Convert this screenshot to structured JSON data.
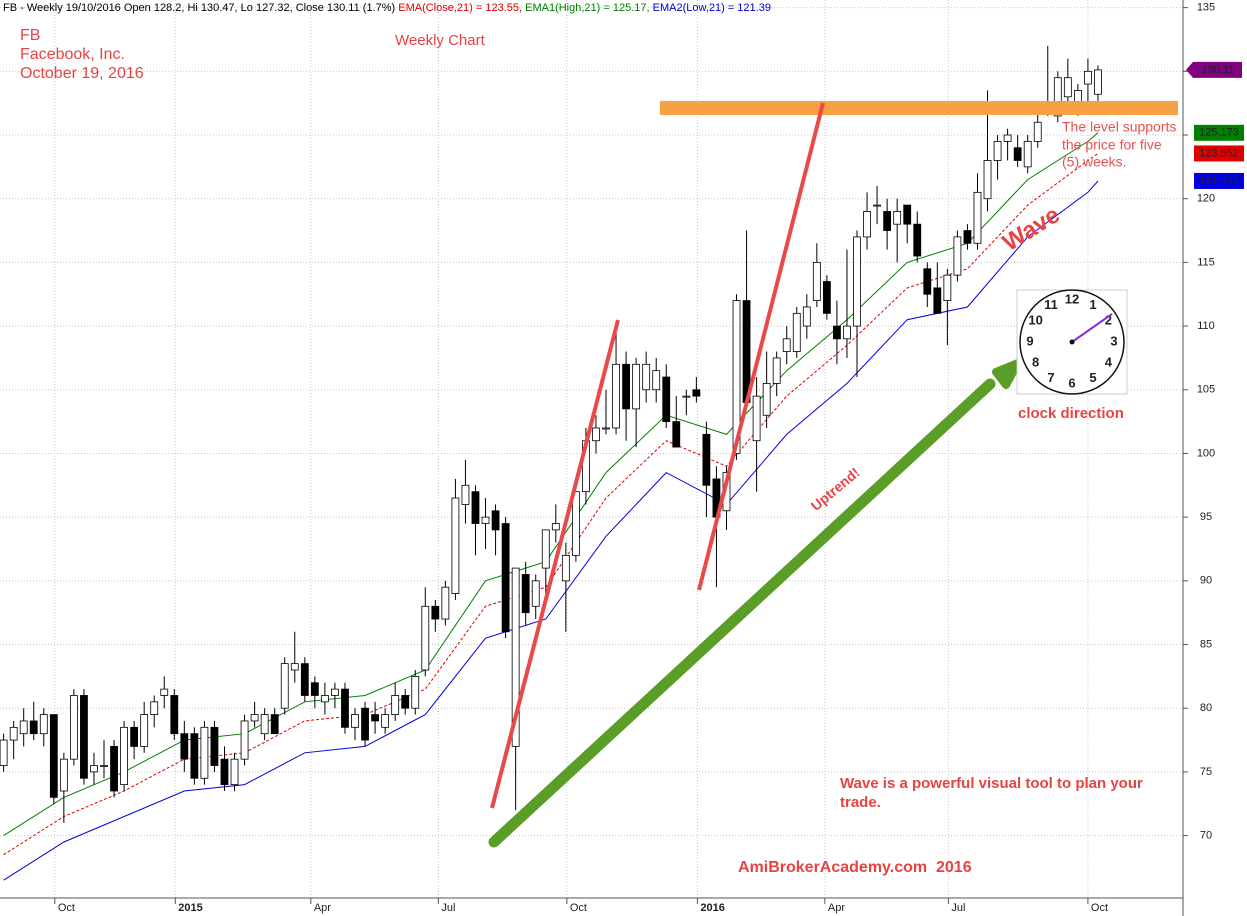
{
  "chart_data": {
    "type": "candlestick",
    "header": [
      {
        "text": "FB - Weekly 19/10/2016 Open 128.2, Hi 130.47, Lo 127.32, Close 130.11 (1.7%) ",
        "color": "#000000"
      },
      {
        "text": "EMA(Close,21) = 123.55, ",
        "color": "#e00000"
      },
      {
        "text": "EMA1(High,21) = 125.17, ",
        "color": "#008000"
      },
      {
        "text": "EMA2(Low,21) = 121.39",
        "color": "#0000c8"
      }
    ],
    "symbol": "FB",
    "company": "Facebook, Inc.",
    "date": "October 19, 2016",
    "title": "Weekly Chart",
    "level_note": [
      "The level supports",
      "the price for five",
      "(5) weeks."
    ],
    "wave_label": "Wave",
    "uptrend_label": "Uptrend!",
    "clock_label": "clock direction",
    "clock_numbers": [
      "12",
      "1",
      "2",
      "3",
      "4",
      "5",
      "6",
      "7",
      "8",
      "9",
      "10",
      "11"
    ],
    "note": [
      "Wave is a powerful visual tool to plan your",
      "trade."
    ],
    "credit": "AmiBrokerAcademy.com  2016",
    "ylim": [
      65.1,
      135.6
    ],
    "yticks": [
      70,
      75,
      80,
      85,
      90,
      95,
      100,
      105,
      110,
      115,
      120,
      125,
      130,
      135
    ],
    "xlim": [
      -0.36,
      117.47
    ],
    "xticks": [
      {
        "value": 5.1,
        "label": "Oct"
      },
      {
        "value": 17.1,
        "label": "2015"
      },
      {
        "value": 30.6,
        "label": "Apr"
      },
      {
        "value": 43.3,
        "label": "Jul"
      },
      {
        "value": 56.1,
        "label": "Oct"
      },
      {
        "value": 69.1,
        "label": "2016"
      },
      {
        "value": 81.8,
        "label": "Apr"
      },
      {
        "value": 94.1,
        "label": "Jul"
      },
      {
        "value": 108,
        "label": "Oct"
      }
    ],
    "grid": true,
    "close_badge_color": "#800080",
    "open": [
      75.5,
      77.5,
      78,
      79,
      78,
      79.5,
      73.5,
      76,
      81,
      75,
      75.5,
      77,
      74,
      78.5,
      77,
      79.5,
      81,
      81,
      78,
      78,
      74.5,
      78.5,
      76,
      74,
      76,
      79,
      78,
      79.5,
      80,
      83,
      83.5,
      82,
      80.5,
      81,
      81.5,
      78.5,
      80,
      79.5,
      78.5,
      79.5,
      81,
      80,
      83,
      88,
      87,
      89,
      96,
      97,
      94.5,
      95.5,
      94.5,
      77,
      90.5,
      88,
      91,
      94,
      90,
      92,
      97,
      101,
      102,
      102,
      107,
      103.5,
      105,
      105,
      106,
      102.5,
      104.5,
      105,
      101.5,
      98,
      95.5,
      100,
      112,
      101,
      103,
      105.5,
      108,
      108,
      110,
      112,
      113.5,
      110,
      109,
      110,
      117,
      119.5,
      119,
      118,
      119.5,
      118,
      114.5,
      113,
      112,
      114,
      117.5,
      116.5,
      120,
      123,
      124.5,
      124,
      122.5,
      124.5,
      127.5,
      126.5,
      128,
      127.5,
      129,
      128.2
    ],
    "high": [
      78,
      79,
      80,
      80.5,
      80,
      79.5,
      76.5,
      81.5,
      81.5,
      76.5,
      77.5,
      77.5,
      79,
      79,
      80.5,
      81,
      82.5,
      81.5,
      79,
      78.5,
      79,
      79,
      77,
      76.5,
      79.5,
      80.5,
      80,
      80,
      84,
      86,
      84,
      82.5,
      82,
      82,
      82,
      80,
      80.5,
      80.5,
      80,
      82,
      81.5,
      83,
      89.5,
      88.5,
      90,
      98,
      99.5,
      97.5,
      96.5,
      96,
      95,
      91,
      91.5,
      90.5,
      94,
      96,
      93,
      97,
      102,
      103,
      105,
      110,
      108,
      107.5,
      108,
      107.5,
      107,
      104.5,
      105,
      106,
      102.5,
      99,
      99,
      112.5,
      117.5,
      106,
      108,
      108,
      110,
      111.5,
      112.5,
      116.5,
      114,
      112,
      116,
      117.5,
      120.5,
      121,
      120,
      120,
      119.5,
      119,
      115,
      115,
      114.5,
      117.5,
      118,
      122,
      128.5,
      125,
      125.5,
      125,
      125,
      127,
      132,
      130,
      131,
      129,
      131,
      130.47
    ],
    "low": [
      75,
      76,
      77,
      77.5,
      77,
      72.5,
      71,
      75.5,
      74,
      74,
      74.5,
      73,
      73.5,
      76,
      76.5,
      78.5,
      80,
      77.5,
      75,
      74,
      74,
      75,
      73.5,
      73.5,
      75.5,
      78.5,
      77.5,
      78,
      79.5,
      82,
      80.5,
      80,
      79.5,
      80,
      78,
      77.5,
      77,
      78,
      78,
      79,
      79.5,
      79.5,
      82.5,
      86,
      86.5,
      88.5,
      94.5,
      92,
      92.5,
      92,
      85.5,
      72,
      86.5,
      87,
      89,
      93,
      86,
      91.5,
      96,
      100,
      101.5,
      101.5,
      101,
      100.5,
      104,
      104,
      102,
      100.5,
      103,
      104,
      95,
      89.5,
      94,
      99.5,
      104,
      97,
      102,
      104.5,
      107,
      107.5,
      109,
      111.5,
      110.5,
      107,
      107.5,
      106,
      116,
      118,
      116,
      115,
      116.5,
      115,
      111.5,
      111,
      108.5,
      113.5,
      116,
      116,
      119,
      121.5,
      123,
      122.5,
      122,
      124,
      126.5,
      126,
      127.5,
      126.5,
      127.5,
      127.32
    ],
    "close": [
      77.5,
      78.5,
      79,
      78,
      79.5,
      73,
      76,
      81,
      74.5,
      75.5,
      75.5,
      73.5,
      78.5,
      77,
      79.5,
      80.5,
      81.5,
      78,
      76,
      74.5,
      78.5,
      75.5,
      74,
      76,
      79,
      79.5,
      79.5,
      78,
      83.5,
      83.5,
      81,
      81,
      81,
      81.5,
      78.5,
      79.5,
      77.5,
      79,
      79.5,
      81,
      80,
      82.5,
      88,
      87,
      89.5,
      96.5,
      97.5,
      94.5,
      95,
      94,
      86,
      91,
      87.5,
      90,
      94,
      94.5,
      92,
      97,
      101,
      102,
      102,
      107,
      103.5,
      107,
      107,
      106.5,
      102.5,
      100.5,
      104.5,
      104.5,
      97.5,
      95,
      98.5,
      112,
      104,
      104.5,
      105.5,
      107.5,
      109,
      111,
      111.5,
      115,
      111,
      109,
      110,
      117,
      119,
      119.5,
      117.5,
      119,
      118,
      115.5,
      112.5,
      111,
      114,
      117,
      116.5,
      120.5,
      123,
      124.5,
      125,
      123,
      124.5,
      126,
      127,
      129.5,
      129.5,
      128.5,
      130,
      130.11
    ],
    "series": [
      {
        "name": "EMA1(High,21)",
        "color": "#008000",
        "dash": false,
        "x": [
          0,
          6,
          12,
          18,
          24,
          30,
          36,
          42,
          48,
          54,
          60,
          66,
          72,
          78,
          84,
          90,
          96,
          102,
          108,
          109
        ],
        "values": [
          70,
          73,
          75,
          77.5,
          78,
          80.5,
          81,
          83,
          90,
          91.5,
          98.5,
          103,
          101.5,
          106.5,
          110.5,
          115,
          116.5,
          121.5,
          124.5,
          125.173
        ]
      },
      {
        "name": "EMA(Close,21)",
        "color": "#e00000",
        "dash": true,
        "x": [
          0,
          6,
          12,
          18,
          24,
          30,
          36,
          42,
          48,
          54,
          60,
          66,
          72,
          78,
          84,
          90,
          96,
          102,
          108,
          109
        ],
        "values": [
          68.5,
          71.5,
          73.5,
          76,
          76.5,
          79,
          79.5,
          81.5,
          88,
          89.5,
          96.5,
          101,
          99,
          104.5,
          108.5,
          113,
          114.5,
          119.5,
          123,
          123.552
        ]
      },
      {
        "name": "EMA2(Low,21)",
        "color": "#0000e0",
        "dash": false,
        "x": [
          0,
          6,
          12,
          18,
          24,
          30,
          36,
          42,
          48,
          54,
          60,
          66,
          72,
          78,
          84,
          90,
          96,
          102,
          108,
          109
        ],
        "values": [
          66.5,
          69.5,
          71.5,
          73.5,
          74,
          76.5,
          77,
          79.5,
          85.5,
          87,
          93.5,
          98.5,
          96,
          101.5,
          105.5,
          110.5,
          111.5,
          117,
          120.5,
          121.394
        ]
      }
    ]
  }
}
